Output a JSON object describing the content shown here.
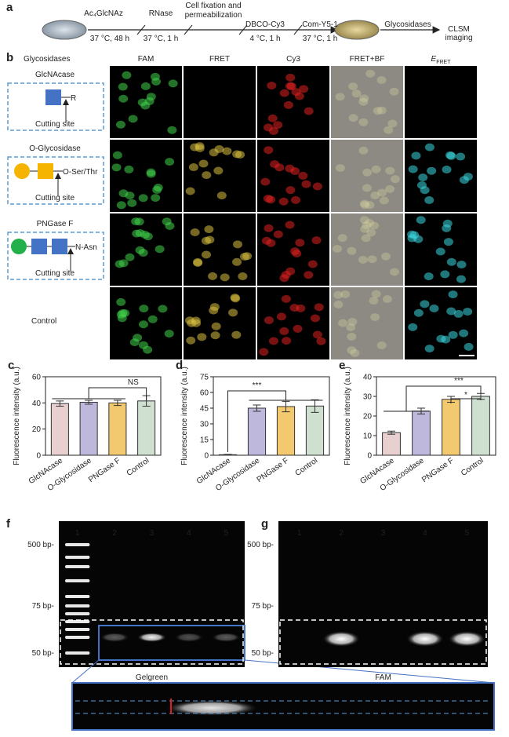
{
  "scheme": {
    "label": "a",
    "reagents": [
      "Ac₄GlcNAz",
      "RNase",
      "DBCO-Cy3",
      "Com-Y5-1",
      "Glycosidases"
    ],
    "conditions": [
      "37 °C, 48 h",
      "37 °C, 1 h",
      "4 °C, 1 h",
      "37 °C, 1 h"
    ],
    "fixation": [
      "Cell fixation and",
      "permeabilization"
    ],
    "readout": [
      "CLSM",
      "imaging"
    ]
  },
  "imaging": {
    "label": "b",
    "row_header": "Glycosidases",
    "columns": [
      "FAM",
      "FRET",
      "Cy3",
      "FRET+BF"
    ],
    "efret": {
      "main": "E",
      "sub": "FRET"
    },
    "rows": [
      {
        "name": "GlcNAcase",
        "site": "R",
        "cut": "Cutting site"
      },
      {
        "name": "O-Glycosidase",
        "site": "O-Ser/Thr",
        "cut": "Cutting site"
      },
      {
        "name": "PNGase F",
        "site": "N-Asn",
        "cut": "Cutting site"
      },
      {
        "name": "Control"
      }
    ]
  },
  "chart_data": [
    {
      "type": "bar",
      "label": "c",
      "y_label": "Fluorescence intensity (a.u.)",
      "categories": [
        "GlcNAcase",
        "O-Glycosidase",
        "PNGase F",
        "Control"
      ],
      "values": [
        39.5,
        40.5,
        40,
        41.5
      ],
      "errors": [
        2,
        1.5,
        2,
        4
      ],
      "colors": [
        "#e8cfd0",
        "#bdb8dc",
        "#f2c96e",
        "#cfe0d0"
      ],
      "ylim": [
        0,
        60
      ],
      "yticks": [
        0,
        20,
        40,
        60
      ],
      "annotations": [
        "NS"
      ]
    },
    {
      "type": "bar",
      "label": "d",
      "y_label": "Fluorescence intensity (a.u.)",
      "categories": [
        "GlcNAcase",
        "O-Glycosidase",
        "PNGase F",
        "Control"
      ],
      "values": [
        0.5,
        45,
        46.5,
        47
      ],
      "errors": [
        0.3,
        3,
        5,
        6
      ],
      "colors": [
        "#e8cfd0",
        "#bdb8dc",
        "#f2c96e",
        "#cfe0d0"
      ],
      "ylim": [
        0,
        75
      ],
      "yticks": [
        0,
        15,
        30,
        45,
        60,
        75
      ],
      "annotations": [
        "***"
      ]
    },
    {
      "type": "bar",
      "label": "e",
      "y_label": "Fluorescence intensity (a.u.)",
      "categories": [
        "GlcNAcase",
        "O-Glycosidase",
        "PNGase F",
        "Control"
      ],
      "values": [
        11.5,
        22.5,
        28.5,
        30
      ],
      "errors": [
        0.8,
        1.5,
        1.5,
        1.5
      ],
      "colors": [
        "#e8cfd0",
        "#bdb8dc",
        "#f2c96e",
        "#cfe0d0"
      ],
      "ylim": [
        0,
        40
      ],
      "yticks": [
        0,
        10,
        20,
        30,
        40
      ],
      "annotations": [
        "***",
        "*"
      ]
    }
  ],
  "gels": [
    {
      "label": "f",
      "lanes": [
        "1",
        "2",
        "3",
        "4",
        "5"
      ],
      "markers": [
        "500 bp-",
        "75 bp-",
        "50 bp-"
      ],
      "caption": "Gelgreen"
    },
    {
      "label": "g",
      "lanes": [
        "1",
        "2",
        "3",
        "4",
        "5"
      ],
      "markers": [
        "500 bp-",
        "75 bp-",
        "50 bp-"
      ],
      "caption": "FAM"
    }
  ]
}
